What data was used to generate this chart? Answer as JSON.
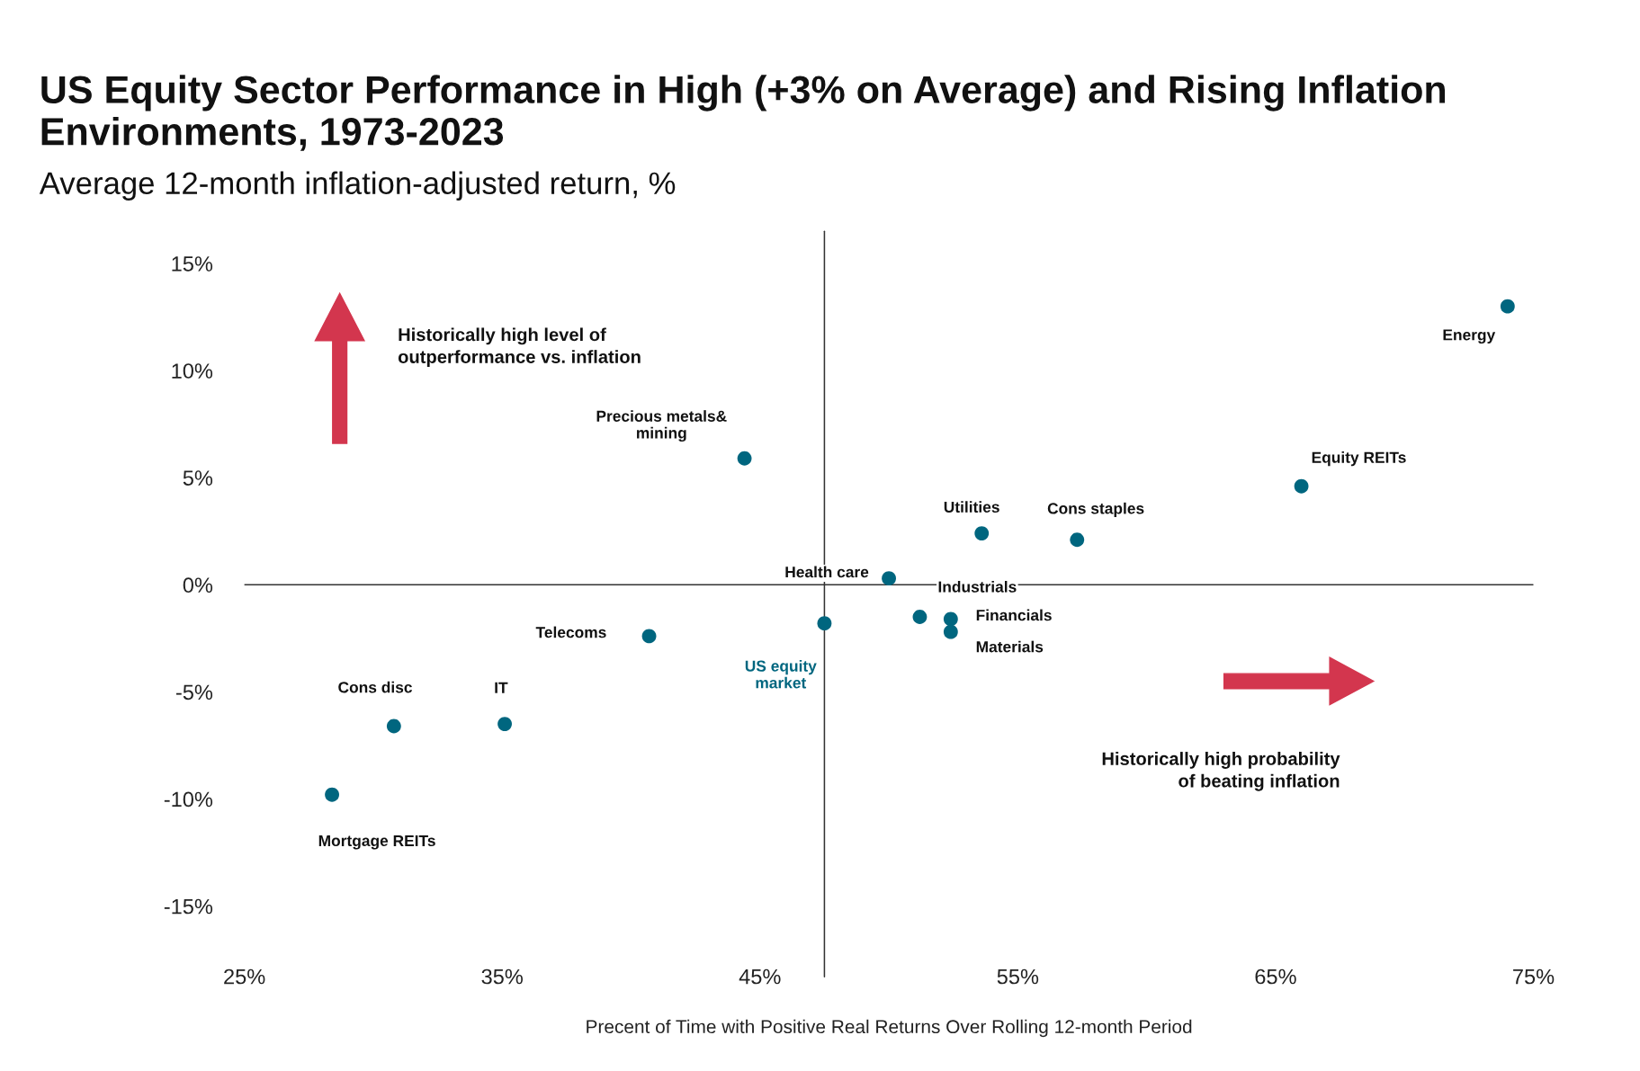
{
  "chart_data": {
    "type": "scatter",
    "title": "US Equity Sector Performance in High (+3% on Average) and Rising Inflation Environments, 1973-2023",
    "subtitle": "Average 12-month inflation-adjusted return, %",
    "xlabel": "Precent of Time with Positive Real Returns Over Rolling 12-month Period",
    "series": [
      {
        "color": "#00667f",
        "x": [
          74.0,
          66.0,
          57.3,
          53.6,
          50.0,
          51.2,
          52.4,
          52.4,
          47.5,
          44.4,
          40.7,
          35.1,
          30.8,
          28.4
        ],
        "values": [
          13.0,
          4.6,
          2.1,
          2.4,
          0.3,
          -1.5,
          -1.6,
          -2.2,
          -1.8,
          5.9,
          -2.4,
          -6.5,
          -6.6,
          -9.8
        ]
      }
    ],
    "annotations": [
      {
        "text": "Energy",
        "x": 74.0,
        "y": 13.0
      },
      {
        "text": "Equity REITs",
        "x": 66.0,
        "y": 4.6
      },
      {
        "text": "Cons staples",
        "x": 57.3,
        "y": 2.1
      },
      {
        "text": "Utilities",
        "x": 53.6,
        "y": 2.4
      },
      {
        "text": "Health care",
        "x": 50.0,
        "y": 0.3
      },
      {
        "text": "Industrials",
        "x": 51.2,
        "y": -1.5
      },
      {
        "text": "Financials",
        "x": 52.4,
        "y": -1.6
      },
      {
        "text": "Materials",
        "x": 52.4,
        "y": -2.2
      },
      {
        "text": "US equity\nmarket",
        "x": 47.5,
        "y": -1.8
      },
      {
        "text": "Precious metals&\nmining",
        "x": 44.4,
        "y": 5.9
      },
      {
        "text": "Telecoms",
        "x": 40.7,
        "y": -2.4
      },
      {
        "text": "IT",
        "x": 35.1,
        "y": -6.5
      },
      {
        "text": "Cons disc",
        "x": 30.8,
        "y": -6.6
      },
      {
        "text": "Mortgage REITs",
        "x": 28.4,
        "y": -9.8
      },
      "Historically high level of\noutperformance vs. inflation",
      "Historically high probability\nof beating inflation"
    ],
    "ref_lines": [
      {
        "axis": "y",
        "value": 0,
        "color": "#333333"
      },
      {
        "axis": "x",
        "value": 47.5,
        "color": "#333333"
      }
    ],
    "xlim": [
      25,
      75
    ],
    "xticks": [
      {
        "value": 25,
        "label": "25%"
      },
      {
        "value": 35,
        "label": "35%"
      },
      {
        "value": 45,
        "label": "45%"
      },
      {
        "value": 55,
        "label": "55%"
      },
      {
        "value": 65,
        "label": "65%"
      },
      {
        "value": 75,
        "label": "75%"
      }
    ],
    "ylim": [
      -15,
      15
    ],
    "yticks": [
      {
        "value": -15,
        "label": "-15%"
      },
      {
        "value": -10,
        "label": "-10%"
      },
      {
        "value": -5,
        "label": "-5%"
      },
      {
        "value": 0,
        "label": "0%"
      },
      {
        "value": 5,
        "label": "5%"
      },
      {
        "value": 10,
        "label": "10%"
      },
      {
        "value": 15,
        "label": "15%"
      }
    ],
    "grid": false,
    "marker": "circle"
  }
}
